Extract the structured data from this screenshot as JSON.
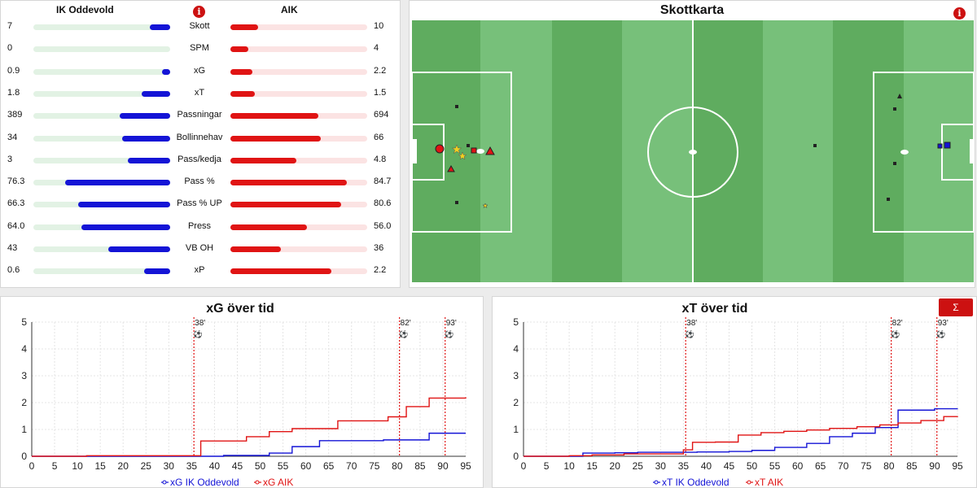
{
  "stats": {
    "home_team": "IK Oddevold",
    "away_team": "AIK",
    "info_glyph": "i",
    "colors": {
      "home": "#1414d6",
      "away": "#e01414"
    },
    "rows": [
      {
        "label": "Skott",
        "home": "7",
        "away": "10",
        "home_fill": 0.15,
        "away_fill": 0.2
      },
      {
        "label": "SPM",
        "home": "0",
        "away": "4",
        "home_fill": 0.0,
        "away_fill": 0.13
      },
      {
        "label": "xG",
        "home": "0.9",
        "away": "2.2",
        "home_fill": 0.06,
        "away_fill": 0.16
      },
      {
        "label": "xT",
        "home": "1.8",
        "away": "1.5",
        "home_fill": 0.21,
        "away_fill": 0.18
      },
      {
        "label": "Passningar",
        "home": "389",
        "away": "694",
        "home_fill": 0.37,
        "away_fill": 0.64
      },
      {
        "label": "Bollinnehav",
        "home": "34",
        "away": "66",
        "home_fill": 0.35,
        "away_fill": 0.66
      },
      {
        "label": "Pass/kedja",
        "home": "3",
        "away": "4.8",
        "home_fill": 0.31,
        "away_fill": 0.48
      },
      {
        "label": "Pass %",
        "home": "76.3",
        "away": "84.7",
        "home_fill": 0.77,
        "away_fill": 0.85
      },
      {
        "label": "Pass % UP",
        "home": "66.3",
        "away": "80.6",
        "home_fill": 0.67,
        "away_fill": 0.81
      },
      {
        "label": "Press",
        "home": "64.0",
        "away": "56.0",
        "home_fill": 0.65,
        "away_fill": 0.56
      },
      {
        "label": "VB OH",
        "home": "43",
        "away": "36",
        "home_fill": 0.45,
        "away_fill": 0.37
      },
      {
        "label": "xP",
        "home": "0.6",
        "away": "2.2",
        "home_fill": 0.19,
        "away_fill": 0.74
      }
    ]
  },
  "shot_map": {
    "title": "Skottkarta",
    "info_glyph": "i",
    "colors": {
      "grass_dark": "#5fac5f",
      "grass_light": "#77c07a",
      "lines": "#ffffff"
    }
  },
  "xg_chart": {
    "title": "xG över tid",
    "legend": [
      "xG IK Oddevold",
      "xG AIK"
    ],
    "goal_icon": "⚽"
  },
  "xt_chart": {
    "title": "xT över tid",
    "legend": [
      "xT IK Oddevold",
      "xT AIK"
    ],
    "goal_icon": "⚽",
    "sum_button": "Σ"
  },
  "chart_data": [
    {
      "type": "line",
      "title": "xG över tid",
      "x_ticks": [
        0,
        5,
        10,
        15,
        20,
        25,
        30,
        35,
        40,
        45,
        50,
        55,
        60,
        65,
        70,
        75,
        80,
        85,
        90,
        95
      ],
      "y_ticks": [
        0,
        1,
        2,
        3,
        4,
        5
      ],
      "xlim": [
        0,
        95
      ],
      "ylim": [
        0,
        5
      ],
      "grid": true,
      "legend_position": "bottom",
      "goal_markers": [
        {
          "x": 35.5,
          "label": "38'"
        },
        {
          "x": 80.5,
          "label": "82'"
        },
        {
          "x": 90.5,
          "label": "93'"
        }
      ],
      "series": [
        {
          "name": "xG IK Oddevold",
          "color": "#1414d6",
          "x": [
            0,
            42,
            52,
            57,
            63,
            77,
            87,
            95
          ],
          "y": [
            0,
            0.03,
            0.12,
            0.36,
            0.58,
            0.61,
            0.86,
            0.86
          ]
        },
        {
          "name": "xG AIK",
          "color": "#e01414",
          "x": [
            0,
            12,
            37,
            47,
            52,
            57,
            67,
            78,
            82,
            87,
            95
          ],
          "y": [
            0,
            0.02,
            0.57,
            0.73,
            0.92,
            1.03,
            1.32,
            1.47,
            1.85,
            2.17,
            2.2
          ]
        }
      ]
    },
    {
      "type": "line",
      "title": "xT över tid",
      "x_ticks": [
        0,
        5,
        10,
        15,
        20,
        25,
        30,
        35,
        40,
        45,
        50,
        55,
        60,
        65,
        70,
        75,
        80,
        85,
        90,
        95
      ],
      "y_ticks": [
        0,
        1,
        2,
        3,
        4,
        5
      ],
      "xlim": [
        0,
        95
      ],
      "ylim": [
        0,
        5
      ],
      "grid": true,
      "legend_position": "bottom",
      "goal_markers": [
        {
          "x": 35.5,
          "label": "38'"
        },
        {
          "x": 80.5,
          "label": "82'"
        },
        {
          "x": 90.5,
          "label": "93'"
        }
      ],
      "series": [
        {
          "name": "xT IK Oddevold",
          "color": "#1414d6",
          "x": [
            0,
            13,
            20,
            25,
            38,
            45,
            50,
            55,
            62,
            67,
            72,
            77,
            82,
            90,
            95
          ],
          "y": [
            0,
            0.12,
            0.13,
            0.15,
            0.16,
            0.18,
            0.22,
            0.33,
            0.48,
            0.73,
            0.86,
            1.07,
            1.72,
            1.77,
            1.78
          ]
        },
        {
          "name": "xT AIK",
          "color": "#e01414",
          "x": [
            0,
            10,
            15,
            22,
            35,
            37,
            42,
            47,
            52,
            57,
            62,
            67,
            73,
            78,
            82,
            87,
            92,
            95
          ],
          "y": [
            0,
            0.02,
            0.05,
            0.09,
            0.24,
            0.52,
            0.53,
            0.79,
            0.88,
            0.93,
            0.98,
            1.04,
            1.1,
            1.17,
            1.24,
            1.33,
            1.48,
            1.5
          ]
        }
      ]
    }
  ]
}
